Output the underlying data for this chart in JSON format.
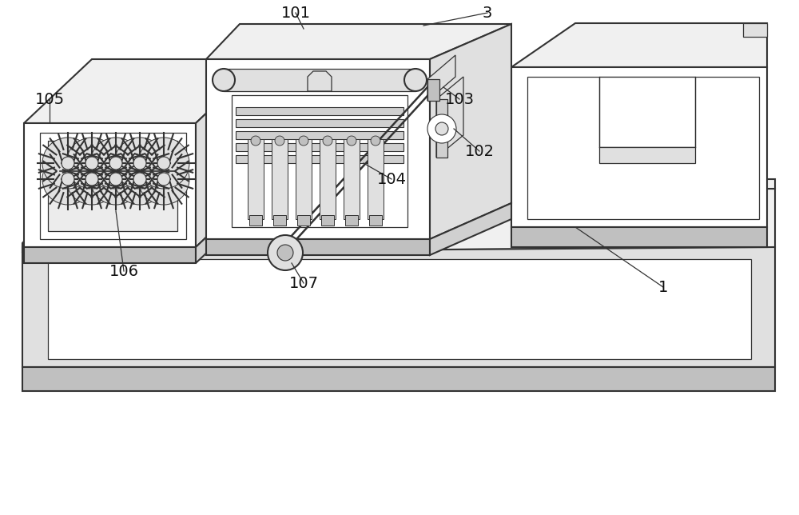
{
  "bg_color": "#ffffff",
  "lc": "#333333",
  "lw": 1.5,
  "lw_thin": 0.9,
  "figsize": [
    10.0,
    6.44
  ],
  "dpi": 100,
  "face_white": "#ffffff",
  "face_light": "#f0f0f0",
  "face_mid": "#e0e0e0",
  "face_dark": "#d0d0d0",
  "face_darker": "#c0c0c0",
  "face_shadow": "#b8b8b8"
}
